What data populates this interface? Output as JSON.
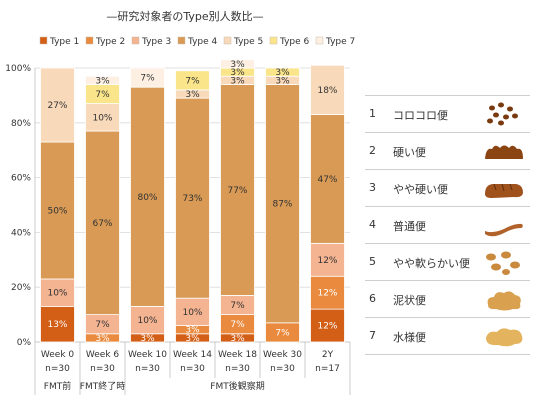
{
  "chart_data": {
    "type": "bar",
    "stacked": true,
    "title": "—研究対象者のType別人数比—",
    "categories": [
      "Week 0",
      "Week 6",
      "Week 10",
      "Week 14",
      "Week 18",
      "Week 30",
      "2Y"
    ],
    "n_labels": [
      "n=30",
      "n=30",
      "n=30",
      "n=30",
      "n=30",
      "n=30",
      "n=17"
    ],
    "periods": [
      {
        "label": "FMT前",
        "start": 0,
        "end": 0
      },
      {
        "label": "FMT終了時",
        "start": 1,
        "end": 1
      },
      {
        "label": "FMT後観察期",
        "start": 2,
        "end": 6
      }
    ],
    "ylim": [
      0,
      100
    ],
    "yticks": [
      "0%",
      "20%",
      "40%",
      "60%",
      "80%",
      "100%"
    ],
    "grid": true,
    "legend_position": "top",
    "series": [
      {
        "name": "Type 1",
        "color": "#d35f17",
        "values": [
          13,
          0,
          3,
          3,
          3,
          0,
          12
        ]
      },
      {
        "name": "Type 2",
        "color": "#e98a3e",
        "values": [
          0,
          3,
          0,
          3,
          7,
          7,
          12
        ]
      },
      {
        "name": "Type 3",
        "color": "#f4b391",
        "values": [
          10,
          7,
          10,
          10,
          7,
          0,
          12
        ]
      },
      {
        "name": "Type 4",
        "color": "#d89a55",
        "values": [
          50,
          67,
          80,
          73,
          77,
          87,
          47
        ]
      },
      {
        "name": "Type 5",
        "color": "#f8d9b9",
        "values": [
          27,
          10,
          0,
          3,
          3,
          3,
          18
        ]
      },
      {
        "name": "Type 6",
        "color": "#fbe58a",
        "values": [
          0,
          7,
          0,
          7,
          3,
          3,
          0
        ]
      },
      {
        "name": "Type 7",
        "color": "#fdf0e2",
        "values": [
          0,
          3,
          7,
          0,
          3,
          0,
          0
        ]
      }
    ],
    "data_labels": [
      [
        "13%",
        "",
        "3%",
        "3%",
        "3%",
        "",
        "12%"
      ],
      [
        "",
        "3%",
        "",
        "3%",
        "7%",
        "7%",
        "12%"
      ],
      [
        "10%",
        "7%",
        "10%",
        "10%",
        "7%",
        "",
        "12%"
      ],
      [
        "50%",
        "67%",
        "80%",
        "73%",
        "77%",
        "87%",
        "47%"
      ],
      [
        "27%",
        "10%",
        "",
        "3%",
        "3%",
        "3%",
        "18%"
      ],
      [
        "",
        "7%",
        "",
        "7%",
        "3%",
        "3%",
        ""
      ],
      [
        "",
        "3%",
        "7%",
        "",
        "3%",
        "",
        ""
      ]
    ]
  },
  "stool_types": [
    {
      "num": "1",
      "name": "コロコロ便",
      "icon": "pellet-stool-icon",
      "color": "#7a3a10"
    },
    {
      "num": "2",
      "name": "硬い便",
      "icon": "lumpy-stool-icon",
      "color": "#8b4513"
    },
    {
      "num": "3",
      "name": "やや硬い便",
      "icon": "cracked-stool-icon",
      "color": "#a0521c"
    },
    {
      "num": "4",
      "name": "普通便",
      "icon": "smooth-stool-icon",
      "color": "#b0622a"
    },
    {
      "num": "5",
      "name": "やや軟らかい便",
      "icon": "soft-blob-stool-icon",
      "color": "#c98a3e"
    },
    {
      "num": "6",
      "name": "泥状便",
      "icon": "mushy-stool-icon",
      "color": "#d9a050"
    },
    {
      "num": "7",
      "name": "水様便",
      "icon": "watery-stool-icon",
      "color": "#e3b35e"
    }
  ]
}
